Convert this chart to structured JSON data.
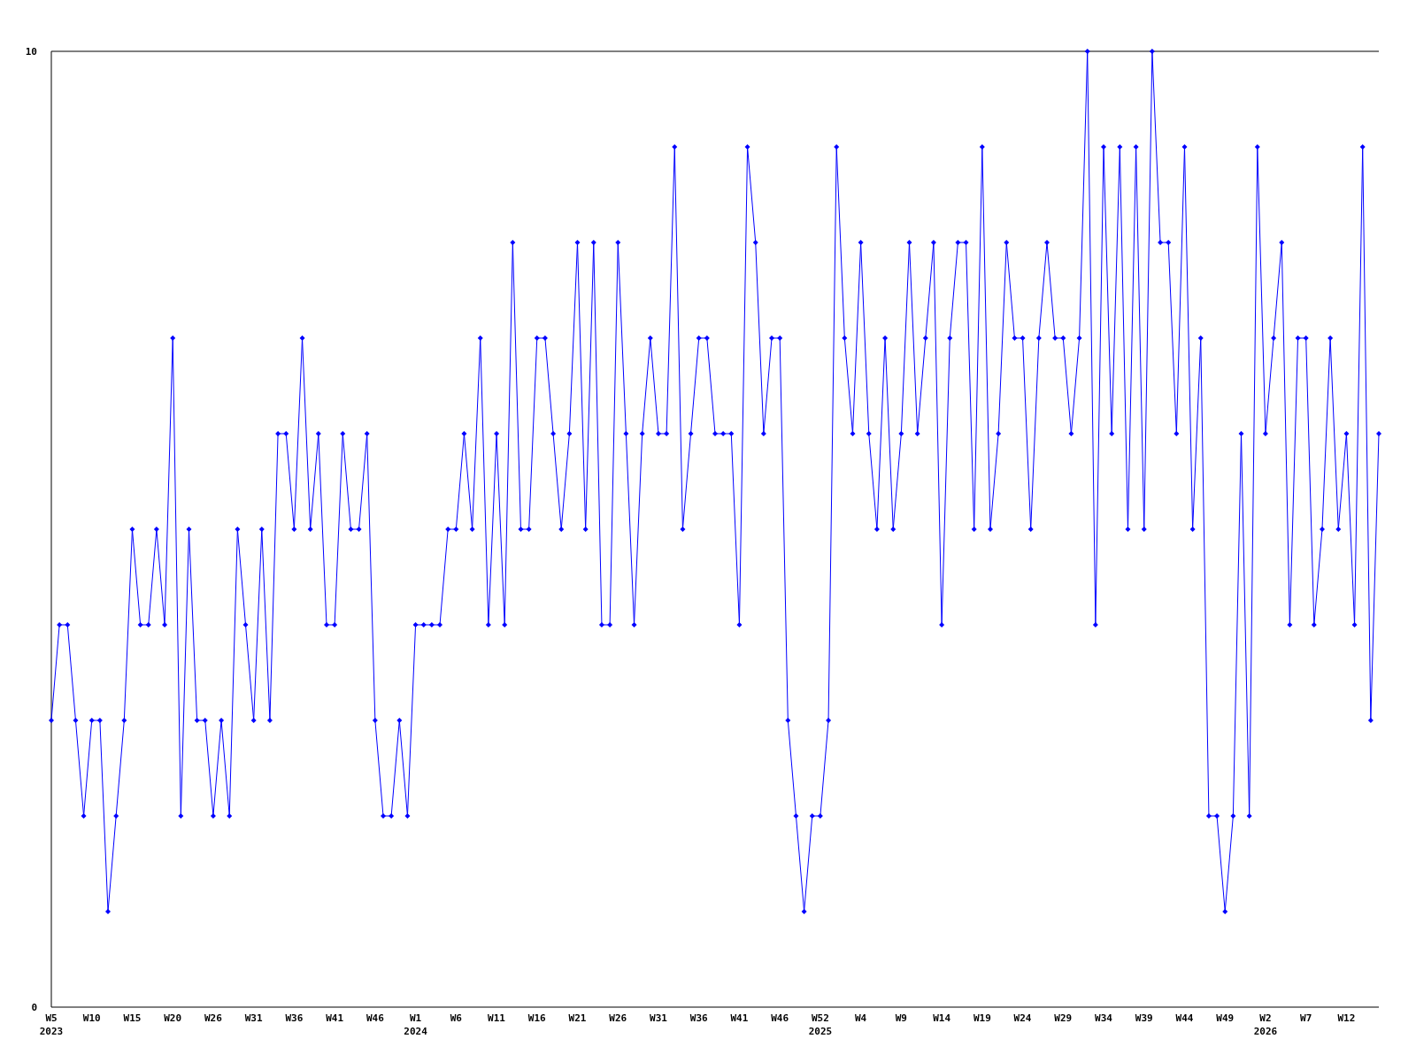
{
  "chart_data": {
    "type": "line",
    "categories": [
      "W5\n2023",
      null,
      null,
      null,
      null,
      "W10",
      null,
      null,
      null,
      null,
      "W15",
      null,
      null,
      null,
      null,
      "W20",
      null,
      null,
      null,
      null,
      "W26",
      null,
      null,
      null,
      null,
      "W31",
      null,
      null,
      null,
      null,
      "W36",
      null,
      null,
      null,
      null,
      "W41",
      null,
      null,
      null,
      null,
      "W46",
      null,
      null,
      null,
      null,
      "W1\n2024",
      null,
      null,
      null,
      null,
      "W6",
      null,
      null,
      null,
      null,
      "W11",
      null,
      null,
      null,
      null,
      "W16",
      null,
      null,
      null,
      null,
      "W21",
      null,
      null,
      null,
      null,
      "W26",
      null,
      null,
      null,
      null,
      "W31",
      null,
      null,
      null,
      null,
      "W36",
      null,
      null,
      null,
      null,
      "W41",
      null,
      null,
      null,
      null,
      "W46",
      null,
      null,
      null,
      null,
      "W52\n2025",
      null,
      null,
      null,
      null,
      "W4",
      null,
      null,
      null,
      null,
      "W9",
      null,
      null,
      null,
      null,
      "W14",
      null,
      null,
      null,
      null,
      "W19",
      null,
      null,
      null,
      null,
      "W24",
      null,
      null,
      null,
      null,
      "W29",
      null,
      null,
      null,
      null,
      "W34",
      null,
      null,
      null,
      null,
      "W39",
      null,
      null,
      null,
      null,
      "W44",
      null,
      null,
      null,
      null,
      "W49",
      null,
      null,
      null,
      null,
      "W2\n2026",
      null,
      null,
      null,
      null,
      "W7",
      null,
      null,
      null,
      null,
      "W12",
      null,
      null,
      null,
      null
    ],
    "series": [
      {
        "color": "#0000ff",
        "values": [
          3,
          4,
          4,
          3,
          2,
          3,
          3,
          1,
          2,
          3,
          5,
          4,
          4,
          5,
          4,
          7,
          2,
          5,
          3,
          3,
          2,
          3,
          2,
          5,
          4,
          3,
          5,
          3,
          6,
          6,
          5,
          7,
          5,
          6,
          4,
          4,
          6,
          5,
          5,
          6,
          3,
          2,
          2,
          3,
          2,
          4,
          4,
          4,
          4,
          5,
          5,
          6,
          5,
          7,
          4,
          6,
          4,
          8,
          5,
          5,
          7,
          7,
          6,
          5,
          6,
          8,
          5,
          8,
          4,
          4,
          8,
          6,
          4,
          6,
          7,
          6,
          6,
          9,
          5,
          6,
          7,
          7,
          6,
          6,
          6,
          4,
          9,
          8,
          6,
          7,
          7,
          3,
          2,
          1,
          2,
          2,
          3,
          9,
          7,
          6,
          8,
          6,
          5,
          7,
          5,
          6,
          8,
          6,
          7,
          8,
          4,
          7,
          8,
          8,
          5,
          9,
          5,
          6,
          8,
          7,
          7,
          5,
          7,
          8,
          7,
          7,
          6,
          7,
          10,
          4,
          9,
          6,
          9,
          5,
          9,
          5,
          10,
          8,
          8,
          6,
          9,
          5,
          7,
          2,
          2,
          1,
          2,
          6,
          2,
          9,
          6,
          7,
          8,
          4,
          7,
          7,
          4,
          5,
          7,
          5,
          6,
          4,
          9,
          3,
          6
        ]
      }
    ],
    "ylim": [
      0,
      10
    ],
    "yticks": [
      0,
      10
    ],
    "marker": "diamond",
    "line_style": "solid",
    "grid": false
  }
}
